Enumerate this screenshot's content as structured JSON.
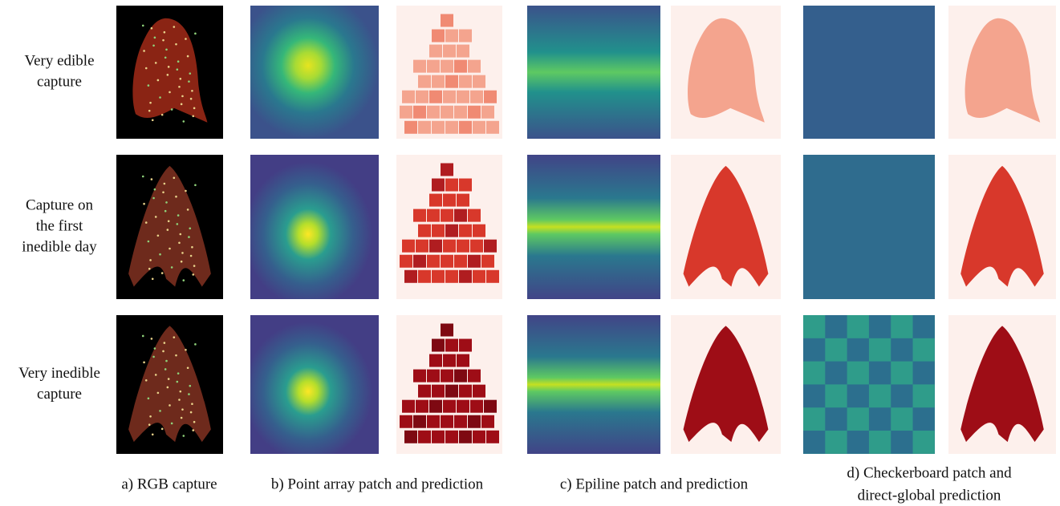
{
  "rows": [
    {
      "label": [
        "Very edible",
        "capture"
      ]
    },
    {
      "label": [
        "Capture on",
        "the first",
        "inedible day"
      ]
    },
    {
      "label": [
        "Very inedible",
        "capture"
      ]
    }
  ],
  "captions": [
    [
      "a) RGB capture"
    ],
    [
      "b) Point array patch and prediction"
    ],
    [
      "c) Epiline patch and prediction"
    ],
    [
      "d) Checkerboard patch and",
      "direct-global prediction"
    ]
  ]
}
